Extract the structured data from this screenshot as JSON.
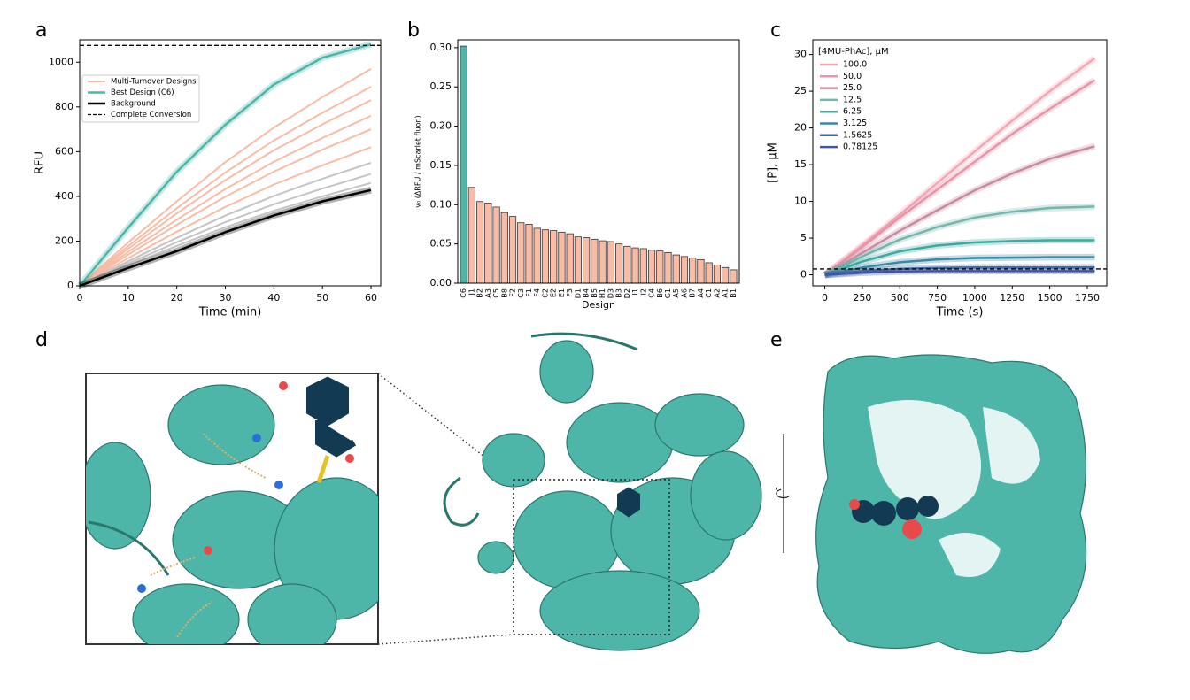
{
  "chart_data": [
    {
      "type": "line",
      "label": "a",
      "xlabel": "Time (min)",
      "ylabel": "RFU",
      "x": [
        0,
        10,
        20,
        30,
        40,
        50,
        60
      ],
      "xlim": [
        0,
        62
      ],
      "xticks": [
        0,
        10,
        20,
        30,
        40,
        50,
        60
      ],
      "ylim": [
        0,
        1100
      ],
      "yticks": [
        0,
        200,
        400,
        600,
        800,
        1000
      ],
      "series": [
        {
          "name": "Multi-Turnover Designs",
          "color": "#f8bca6",
          "line_width": 2,
          "lines": [
            [
              0,
              194,
              378,
              553,
              708,
              844,
              970
            ],
            [
              0,
              178,
              347,
              507,
              650,
              774,
              890
            ],
            [
              0,
              166,
              324,
              473,
              606,
              722,
              830
            ],
            [
              0,
              152,
              296,
              433,
              555,
              661,
              760
            ],
            [
              0,
              140,
              273,
              399,
              511,
              609,
              700
            ],
            [
              0,
              124,
              242,
              353,
              453,
              539,
              620
            ]
          ]
        },
        {
          "name": "Best Design (C6)",
          "color": "#4db6a8",
          "line_width": 2.5,
          "values": [
            0,
            260,
            510,
            720,
            900,
            1020,
            1080
          ]
        },
        {
          "name": "Background",
          "color": "#000000",
          "line_width": 2.5,
          "values": [
            0,
            80,
            155,
            240,
            315,
            378,
            428
          ],
          "replicate_color": "#b5b5b5",
          "replicates": [
            [
              0,
              110,
              215,
              314,
              402,
              479,
              550
            ],
            [
              0,
              100,
              195,
              285,
              365,
              435,
              500
            ],
            [
              0,
              92,
              179,
              262,
              336,
              400,
              460
            ]
          ]
        }
      ],
      "hline": {
        "name": "Complete Conversion",
        "value": 1075,
        "color": "#000000"
      }
    },
    {
      "type": "bar",
      "label": "b",
      "xlabel": "Design",
      "ylabel": "v₀ (ΔRFU / mScarlet fluor.)",
      "categories": [
        "C6",
        "J1",
        "B2",
        "A3",
        "C5",
        "B8",
        "F2",
        "C3",
        "F1",
        "F4",
        "C2",
        "E2",
        "E1",
        "F3",
        "D1",
        "B4",
        "B5",
        "H1",
        "D3",
        "B3",
        "D2",
        "I1",
        "I2",
        "C4",
        "B6",
        "G1",
        "A5",
        "A6",
        "B7",
        "A4",
        "C1",
        "A2",
        "A1",
        "B1"
      ],
      "values": [
        0.302,
        0.122,
        0.104,
        0.102,
        0.097,
        0.09,
        0.085,
        0.077,
        0.075,
        0.07,
        0.068,
        0.067,
        0.065,
        0.063,
        0.059,
        0.058,
        0.056,
        0.054,
        0.053,
        0.05,
        0.047,
        0.045,
        0.044,
        0.042,
        0.041,
        0.039,
        0.036,
        0.034,
        0.032,
        0.03,
        0.026,
        0.023,
        0.02,
        0.017
      ],
      "color": "#f8bca6",
      "highlight": {
        "index": 0,
        "color": "#4db6a8"
      },
      "ylim": [
        0,
        0.31
      ],
      "yticks": [
        {
          "value": 0,
          "label": "0.00"
        },
        0.05,
        {
          "value": 0.1,
          "label": "0.10"
        },
        0.15,
        {
          "value": 0.2,
          "label": "0.20"
        },
        0.25,
        {
          "value": 0.3,
          "label": "0.30"
        }
      ]
    },
    {
      "type": "line",
      "label": "c",
      "xlabel": "Time (s)",
      "ylabel": "[P], µM",
      "legend_title": "[4MU-PhAc], µM",
      "x": [
        0,
        250,
        500,
        750,
        1000,
        1250,
        1500,
        1800
      ],
      "xlim": [
        -80,
        1880
      ],
      "xticks": [
        0,
        250,
        500,
        750,
        1000,
        1250,
        1500,
        1750
      ],
      "ylim": [
        -1.5,
        32
      ],
      "yticks": [
        0,
        5,
        10,
        15,
        20,
        25,
        30
      ],
      "series": [
        {
          "name": "100.0",
          "color": "#f4a6b4",
          "line_width": 2.5,
          "values": [
            0,
            4,
            8.2,
            12.5,
            16.8,
            21,
            25,
            29.5
          ]
        },
        {
          "name": "50.0",
          "color": "#e993a8",
          "line_width": 2.5,
          "values": [
            0,
            3.8,
            7.8,
            11.6,
            15.4,
            19.2,
            22.6,
            26.5
          ]
        },
        {
          "name": "25.0",
          "color": "#c98ba0",
          "line_width": 2.5,
          "values": [
            0,
            3,
            6,
            8.8,
            11.5,
            13.8,
            15.8,
            17.5
          ]
        },
        {
          "name": "12.5",
          "color": "#74b5ae",
          "line_width": 2.5,
          "values": [
            0,
            2.5,
            4.8,
            6.5,
            7.8,
            8.6,
            9.1,
            9.3
          ]
        },
        {
          "name": "6.25",
          "color": "#3fa8a0",
          "line_width": 2.5,
          "values": [
            0,
            1.8,
            3.2,
            4,
            4.4,
            4.6,
            4.7,
            4.7
          ]
        },
        {
          "name": "3.125",
          "color": "#3a89a5",
          "line_width": 2.5,
          "values": [
            0,
            1,
            1.7,
            2.1,
            2.3,
            2.35,
            2.4,
            2.4
          ]
        },
        {
          "name": "1.5625",
          "color": "#3e6aa8",
          "line_width": 2.5,
          "values": [
            0,
            0.5,
            0.8,
            0.95,
            1,
            1,
            1,
            1
          ]
        },
        {
          "name": "0.78125",
          "color": "#3f56a6",
          "line_width": 2.5,
          "values": [
            0,
            0.3,
            0.45,
            0.5,
            0.5,
            0.5,
            0.5,
            0.5
          ]
        }
      ],
      "hline": {
        "value": 0.8,
        "color": "#000000"
      }
    }
  ],
  "figures": [
    {
      "label": "d"
    },
    {
      "label": "e"
    }
  ]
}
